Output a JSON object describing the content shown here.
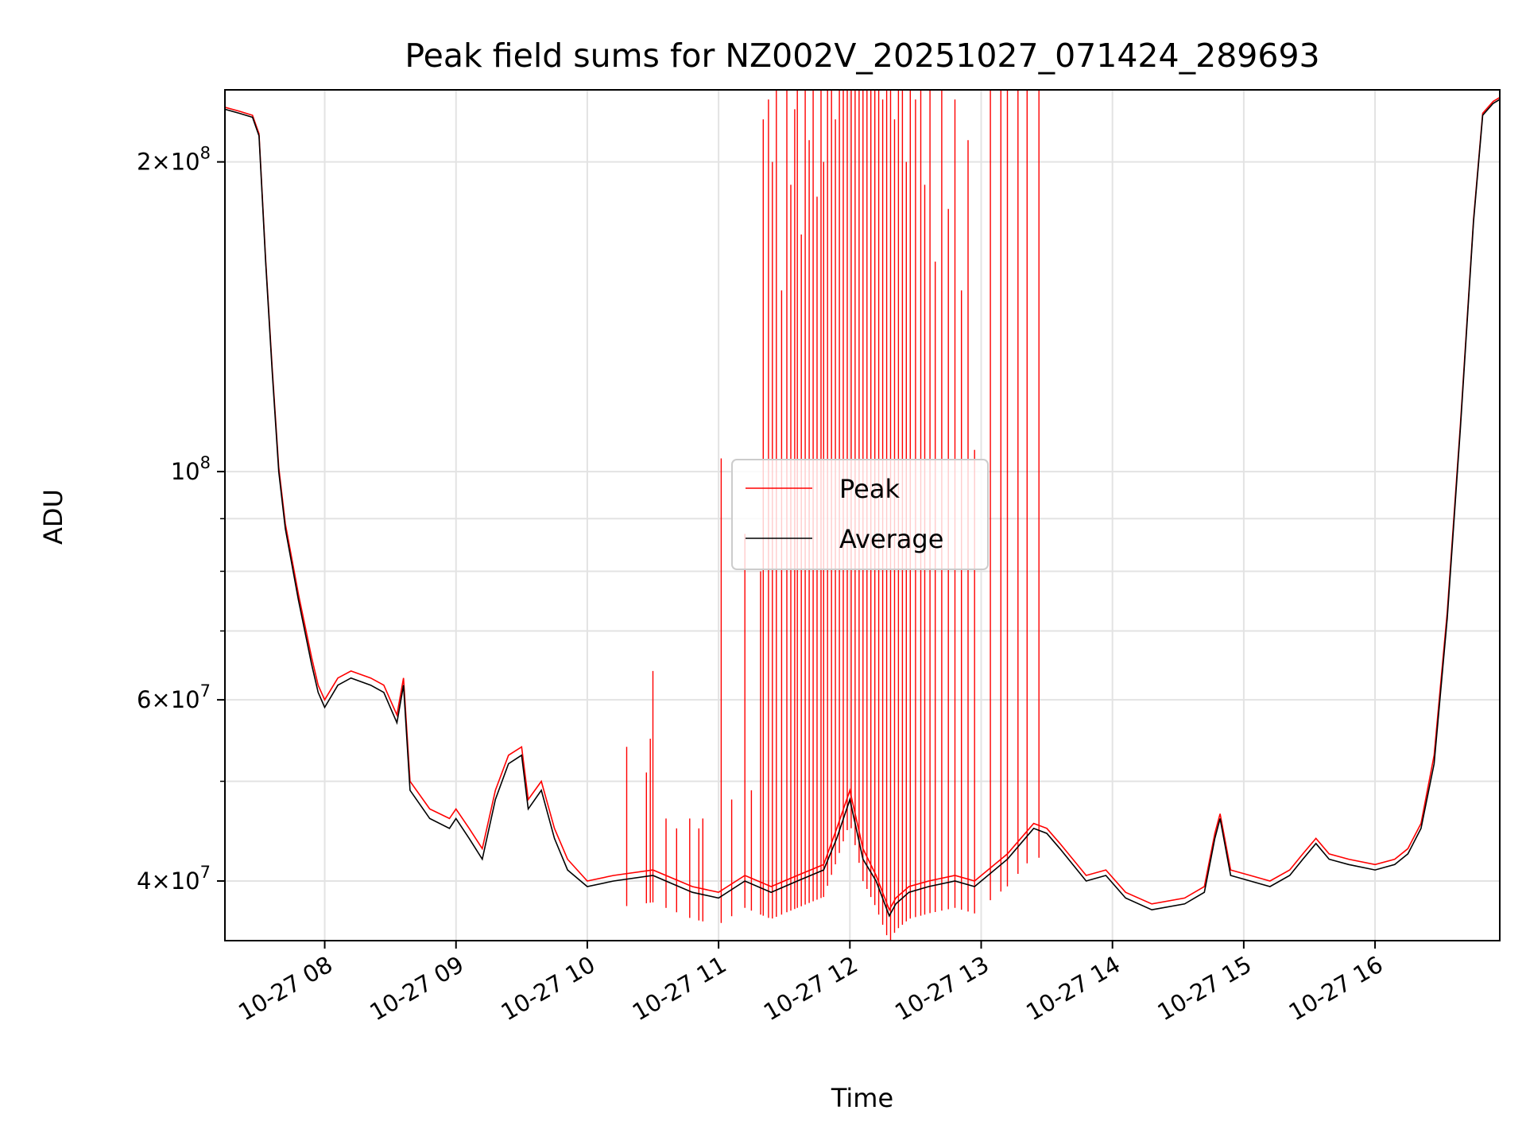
{
  "chart_data": {
    "type": "line",
    "title": "Peak field sums for NZ002V_20251027_071424_289693",
    "xlabel": "Time",
    "ylabel": "ADU",
    "yscale": "log",
    "grid": true,
    "legend_position": "center",
    "xlim_hours": [
      7.24,
      16.95
    ],
    "ylim": [
      35000000,
      235000000
    ],
    "x_ticks": [
      {
        "value": 8,
        "label": "10-27 08"
      },
      {
        "value": 9,
        "label": "10-27 09"
      },
      {
        "value": 10,
        "label": "10-27 10"
      },
      {
        "value": 11,
        "label": "10-27 11"
      },
      {
        "value": 12,
        "label": "10-27 12"
      },
      {
        "value": 13,
        "label": "10-27 13"
      },
      {
        "value": 14,
        "label": "10-27 14"
      },
      {
        "value": 15,
        "label": "10-27 15"
      },
      {
        "value": 16,
        "label": "10-27 16"
      }
    ],
    "y_major_ticks": [
      {
        "value": 40000000,
        "mantissa": "4",
        "exponent": "7"
      },
      {
        "value": 60000000,
        "mantissa": "6",
        "exponent": "7"
      },
      {
        "value": 100000000,
        "mantissa": "",
        "exponent": "8"
      },
      {
        "value": 200000000,
        "mantissa": "2",
        "exponent": "8"
      }
    ],
    "y_minor_grid": [
      50000000,
      70000000,
      80000000,
      90000000
    ],
    "series": [
      {
        "name": "Average",
        "color": "#000000",
        "x": [
          7.24,
          7.35,
          7.45,
          7.5,
          7.55,
          7.6,
          7.65,
          7.7,
          7.8,
          7.9,
          7.95,
          8.0,
          8.1,
          8.2,
          8.35,
          8.45,
          8.55,
          8.6,
          8.65,
          8.8,
          8.95,
          9.0,
          9.1,
          9.2,
          9.3,
          9.4,
          9.5,
          9.55,
          9.65,
          9.75,
          9.85,
          10.0,
          10.2,
          10.5,
          10.8,
          11.0,
          11.2,
          11.4,
          11.6,
          11.8,
          11.9,
          12.0,
          12.1,
          12.2,
          12.3,
          12.35,
          12.45,
          12.6,
          12.8,
          12.95,
          13.2,
          13.4,
          13.5,
          13.6,
          13.8,
          13.95,
          14.1,
          14.3,
          14.55,
          14.7,
          14.78,
          14.82,
          14.9,
          15.05,
          15.2,
          15.35,
          15.45,
          15.55,
          15.65,
          15.8,
          16.0,
          16.15,
          16.25,
          16.35,
          16.45,
          16.55,
          16.65,
          16.75,
          16.82,
          16.9,
          16.95
        ],
        "values": [
          225000000,
          223000000,
          221000000,
          212000000,
          160000000,
          125000000,
          100000000,
          88000000,
          75000000,
          65000000,
          61000000,
          59000000,
          62000000,
          63000000,
          62000000,
          61000000,
          57000000,
          62000000,
          49000000,
          46000000,
          45000000,
          46000000,
          44000000,
          42000000,
          48000000,
          52000000,
          53000000,
          47000000,
          49000000,
          44000000,
          41000000,
          39500000,
          40000000,
          40500000,
          39000000,
          38500000,
          40000000,
          39000000,
          40000000,
          41000000,
          44000000,
          48000000,
          42000000,
          40000000,
          37000000,
          38000000,
          39000000,
          39500000,
          40000000,
          39500000,
          42000000,
          45000000,
          44500000,
          43000000,
          40000000,
          40500000,
          38500000,
          37500000,
          38000000,
          39000000,
          44000000,
          46000000,
          40500000,
          40000000,
          39500000,
          40500000,
          42000000,
          43500000,
          42000000,
          41500000,
          41000000,
          41500000,
          42500000,
          45000000,
          52000000,
          72000000,
          110000000,
          175000000,
          222000000,
          228000000,
          230000000
        ]
      },
      {
        "name": "Peak",
        "color": "#ff0000",
        "x": [
          7.24,
          7.35,
          7.45,
          7.5,
          7.55,
          7.6,
          7.65,
          7.7,
          7.8,
          7.9,
          7.95,
          8.0,
          8.1,
          8.2,
          8.35,
          8.45,
          8.55,
          8.6,
          8.65,
          8.8,
          8.95,
          9.0,
          9.1,
          9.2,
          9.3,
          9.4,
          9.5,
          9.55,
          9.65,
          9.75,
          9.85,
          10.0,
          10.2,
          10.5,
          10.8,
          11.0,
          11.2,
          11.4,
          11.6,
          11.8,
          11.9,
          12.0,
          12.1,
          12.2,
          12.3,
          12.35,
          12.45,
          12.6,
          12.8,
          12.95,
          13.2,
          13.4,
          13.5,
          13.6,
          13.8,
          13.95,
          14.1,
          14.3,
          14.55,
          14.7,
          14.78,
          14.82,
          14.9,
          15.05,
          15.2,
          15.35,
          15.45,
          15.55,
          15.65,
          15.8,
          16.0,
          16.15,
          16.25,
          16.35,
          16.45,
          16.55,
          16.65,
          16.75,
          16.82,
          16.9,
          16.95
        ],
        "values": [
          226000000,
          224000000,
          222000000,
          213000000,
          161000000,
          126000000,
          101000000,
          89000000,
          76000000,
          66000000,
          62000000,
          60000000,
          63000000,
          64000000,
          63000000,
          62000000,
          58000000,
          63000000,
          50000000,
          47000000,
          46000000,
          47000000,
          45000000,
          43000000,
          49000000,
          53000000,
          54000000,
          48000000,
          50000000,
          45000000,
          42000000,
          40000000,
          40500000,
          41000000,
          39500000,
          39000000,
          40500000,
          39500000,
          40500000,
          41500000,
          45000000,
          49000000,
          43000000,
          40500000,
          37500000,
          38500000,
          39500000,
          40000000,
          40500000,
          40000000,
          42500000,
          45500000,
          45000000,
          43500000,
          40500000,
          41000000,
          39000000,
          38000000,
          38500000,
          39500000,
          44500000,
          46500000,
          41000000,
          40500000,
          40000000,
          41000000,
          42500000,
          44000000,
          42500000,
          42000000,
          41500000,
          42000000,
          43000000,
          45500000,
          53000000,
          73000000,
          111000000,
          176000000,
          223000000,
          229000000,
          231000000
        ],
        "spikes": [
          {
            "x": 10.3,
            "value": 54000000
          },
          {
            "x": 10.45,
            "value": 51000000
          },
          {
            "x": 10.48,
            "value": 55000000
          },
          {
            "x": 10.5,
            "value": 64000000
          },
          {
            "x": 10.6,
            "value": 46000000
          },
          {
            "x": 10.68,
            "value": 45000000
          },
          {
            "x": 10.78,
            "value": 46000000
          },
          {
            "x": 10.85,
            "value": 45000000
          },
          {
            "x": 10.88,
            "value": 46000000
          },
          {
            "x": 11.02,
            "value": 103000000
          },
          {
            "x": 11.1,
            "value": 48000000
          },
          {
            "x": 11.2,
            "value": 87000000
          },
          {
            "x": 11.25,
            "value": 49000000
          },
          {
            "x": 11.32,
            "value": 80000000
          },
          {
            "x": 11.34,
            "value": 220000000
          },
          {
            "x": 11.38,
            "value": 230000000
          },
          {
            "x": 11.41,
            "value": 200000000
          },
          {
            "x": 11.44,
            "value": 235000000
          },
          {
            "x": 11.48,
            "value": 150000000
          },
          {
            "x": 11.52,
            "value": 235000000
          },
          {
            "x": 11.55,
            "value": 190000000
          },
          {
            "x": 11.58,
            "value": 225000000
          },
          {
            "x": 11.6,
            "value": 235000000
          },
          {
            "x": 11.63,
            "value": 170000000
          },
          {
            "x": 11.66,
            "value": 235000000
          },
          {
            "x": 11.69,
            "value": 210000000
          },
          {
            "x": 11.72,
            "value": 235000000
          },
          {
            "x": 11.75,
            "value": 185000000
          },
          {
            "x": 11.78,
            "value": 235000000
          },
          {
            "x": 11.8,
            "value": 200000000
          },
          {
            "x": 11.83,
            "value": 235000000
          },
          {
            "x": 11.86,
            "value": 235000000
          },
          {
            "x": 11.89,
            "value": 220000000
          },
          {
            "x": 11.92,
            "value": 235000000
          },
          {
            "x": 11.95,
            "value": 235000000
          },
          {
            "x": 11.98,
            "value": 235000000
          },
          {
            "x": 12.01,
            "value": 235000000
          },
          {
            "x": 12.04,
            "value": 235000000
          },
          {
            "x": 12.07,
            "value": 235000000
          },
          {
            "x": 12.1,
            "value": 235000000
          },
          {
            "x": 12.13,
            "value": 235000000
          },
          {
            "x": 12.16,
            "value": 235000000
          },
          {
            "x": 12.19,
            "value": 235000000
          },
          {
            "x": 12.22,
            "value": 235000000
          },
          {
            "x": 12.25,
            "value": 230000000
          },
          {
            "x": 12.28,
            "value": 235000000
          },
          {
            "x": 12.31,
            "value": 235000000
          },
          {
            "x": 12.34,
            "value": 220000000
          },
          {
            "x": 12.37,
            "value": 235000000
          },
          {
            "x": 12.4,
            "value": 235000000
          },
          {
            "x": 12.43,
            "value": 200000000
          },
          {
            "x": 12.46,
            "value": 235000000
          },
          {
            "x": 12.5,
            "value": 230000000
          },
          {
            "x": 12.54,
            "value": 235000000
          },
          {
            "x": 12.57,
            "value": 190000000
          },
          {
            "x": 12.61,
            "value": 235000000
          },
          {
            "x": 12.65,
            "value": 160000000
          },
          {
            "x": 12.7,
            "value": 235000000
          },
          {
            "x": 12.75,
            "value": 180000000
          },
          {
            "x": 12.8,
            "value": 230000000
          },
          {
            "x": 12.85,
            "value": 150000000
          },
          {
            "x": 12.9,
            "value": 210000000
          },
          {
            "x": 12.95,
            "value": 105000000
          },
          {
            "x": 13.07,
            "value": 235000000
          },
          {
            "x": 13.15,
            "value": 235000000
          },
          {
            "x": 13.2,
            "value": 235000000
          },
          {
            "x": 13.28,
            "value": 235000000
          },
          {
            "x": 13.35,
            "value": 235000000
          },
          {
            "x": 13.44,
            "value": 235000000
          }
        ]
      }
    ]
  }
}
